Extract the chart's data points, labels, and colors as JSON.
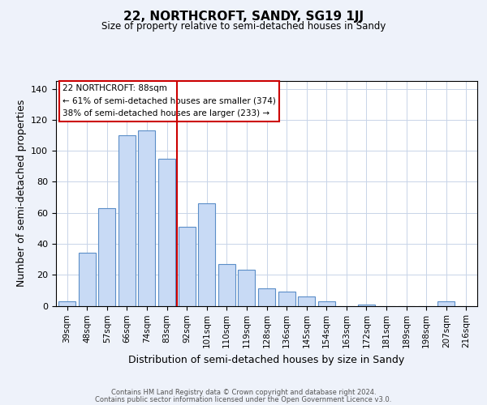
{
  "title": "22, NORTHCROFT, SANDY, SG19 1JJ",
  "subtitle": "Size of property relative to semi-detached houses in Sandy",
  "xlabel": "Distribution of semi-detached houses by size in Sandy",
  "ylabel": "Number of semi-detached properties",
  "categories": [
    "39sqm",
    "48sqm",
    "57sqm",
    "66sqm",
    "74sqm",
    "83sqm",
    "92sqm",
    "101sqm",
    "110sqm",
    "119sqm",
    "128sqm",
    "136sqm",
    "145sqm",
    "154sqm",
    "163sqm",
    "172sqm",
    "181sqm",
    "189sqm",
    "198sqm",
    "207sqm",
    "216sqm"
  ],
  "values": [
    3,
    34,
    63,
    110,
    113,
    95,
    51,
    66,
    27,
    23,
    11,
    9,
    6,
    3,
    0,
    1,
    0,
    0,
    0,
    3,
    0
  ],
  "bar_color": "#c8daf5",
  "bar_edge_color": "#5b8ec8",
  "vline_x": 5.5,
  "vline_color": "#cc0000",
  "annotation_title": "22 NORTHCROFT: 88sqm",
  "annotation_line1": "← 61% of semi-detached houses are smaller (374)",
  "annotation_line2": "38% of semi-detached houses are larger (233) →",
  "annotation_box_edge": "#cc0000",
  "footer_line1": "Contains HM Land Registry data © Crown copyright and database right 2024.",
  "footer_line2": "Contains public sector information licensed under the Open Government Licence v3.0.",
  "ylim": [
    0,
    145
  ],
  "yticks": [
    0,
    20,
    40,
    60,
    80,
    100,
    120,
    140
  ],
  "background_color": "#eef2fa",
  "plot_background": "#ffffff"
}
